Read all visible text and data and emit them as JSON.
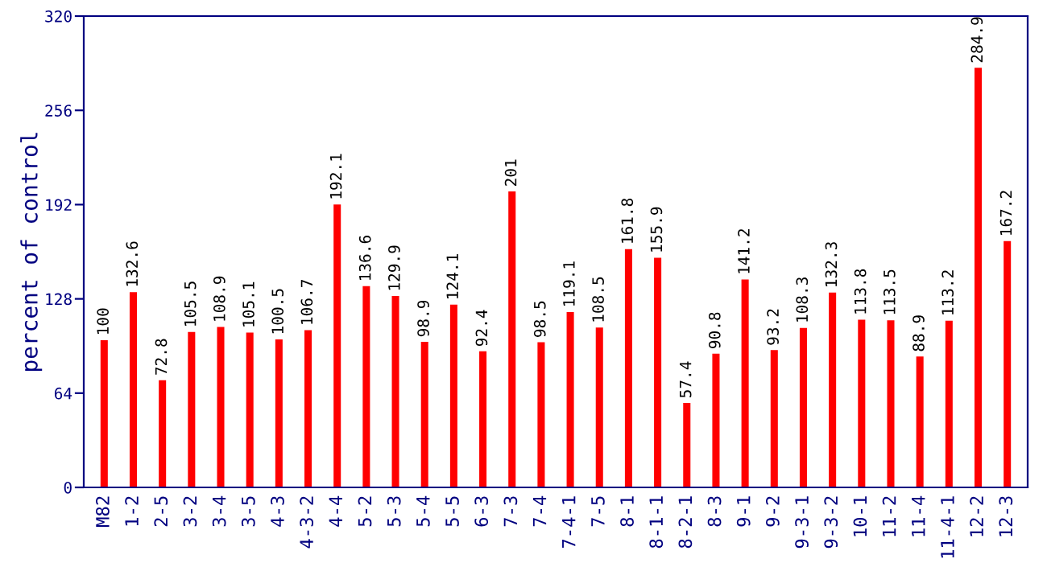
{
  "chart_data": {
    "type": "bar",
    "ylabel": "percent of control",
    "categories": [
      "M82",
      "1-2",
      "2-5",
      "3-2",
      "3-4",
      "3-5",
      "4-3",
      "4-3-2",
      "4-4",
      "5-2",
      "5-3",
      "5-4",
      "5-5",
      "6-3",
      "7-3",
      "7-4",
      "7-4-1",
      "7-5",
      "8-1",
      "8-1-1",
      "8-2-1",
      "8-3",
      "9-1",
      "9-2",
      "9-3-1",
      "9-3-2",
      "10-1",
      "11-2",
      "11-4",
      "11-4-1",
      "12-2",
      "12-3"
    ],
    "values": [
      100,
      132.6,
      72.8,
      105.5,
      108.9,
      105.1,
      100.5,
      106.7,
      192.1,
      136.6,
      129.9,
      98.9,
      124.1,
      92.4,
      201,
      98.5,
      119.1,
      108.5,
      161.8,
      155.9,
      57.4,
      90.8,
      141.2,
      93.2,
      108.3,
      132.3,
      113.8,
      113.5,
      88.9,
      113.2,
      284.9,
      167.2
    ],
    "color": "#ff0000",
    "ylim": [
      0,
      320
    ],
    "yticks": [
      0,
      64,
      128,
      192,
      256,
      320
    ],
    "grid": false,
    "data_labels": true
  }
}
